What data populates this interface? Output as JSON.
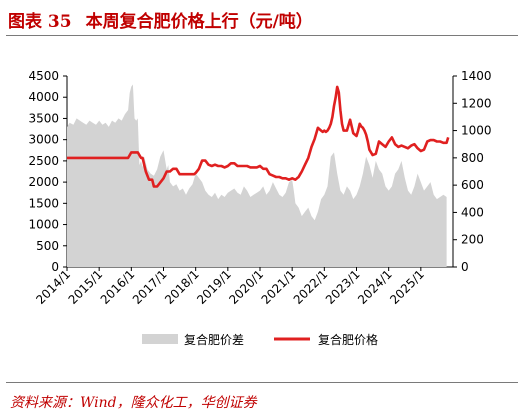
{
  "figure": {
    "label": "图表 35",
    "title": "本周复合肥价格上行（元/吨）",
    "source": "资料来源：Wind，隆众化工，华创证券"
  },
  "colors": {
    "title": "#c00000",
    "area": "#d3d3d3",
    "line": "#e02020",
    "axis": "#000000",
    "rule": "#7a7a7a"
  },
  "chart_data": {
    "type": "area",
    "x_ticks": [
      "2014/1",
      "2015/1",
      "2016/1",
      "2017/1",
      "2018/1",
      "2019/1",
      "2020/1",
      "2021/1",
      "2022/1",
      "2023/1",
      "2024/1",
      "2025/1"
    ],
    "x_range": [
      2014.0,
      2026.0
    ],
    "y_left": {
      "range": [
        0,
        4500
      ],
      "ticks": [
        0,
        500,
        1000,
        1500,
        2000,
        2500,
        3000,
        3500,
        4000,
        4500
      ]
    },
    "y_right": {
      "range": [
        0,
        1400
      ],
      "ticks": [
        0,
        200,
        400,
        600,
        800,
        1000,
        1200,
        1400
      ]
    },
    "legend_position": "bottom",
    "series": [
      {
        "name": "复合肥价差",
        "axis": "left",
        "style": "area",
        "x": [
          2014.0,
          2014.08,
          2014.2,
          2014.3,
          2014.4,
          2014.5,
          2014.6,
          2014.7,
          2014.8,
          2014.9,
          2015.0,
          2015.1,
          2015.2,
          2015.3,
          2015.4,
          2015.5,
          2015.6,
          2015.7,
          2015.8,
          2015.9,
          2015.95,
          2016.0,
          2016.05,
          2016.1,
          2016.15,
          2016.2,
          2016.25,
          2016.3,
          2016.35,
          2016.4,
          2016.5,
          2016.6,
          2016.7,
          2016.8,
          2016.9,
          2017.0,
          2017.1,
          2017.15,
          2017.2,
          2017.3,
          2017.4,
          2017.5,
          2017.6,
          2017.7,
          2017.8,
          2017.9,
          2018.0,
          2018.1,
          2018.2,
          2018.3,
          2018.4,
          2018.5,
          2018.6,
          2018.7,
          2018.8,
          2018.9,
          2019.0,
          2019.1,
          2019.2,
          2019.3,
          2019.4,
          2019.5,
          2019.6,
          2019.7,
          2019.8,
          2019.9,
          2020.0,
          2020.1,
          2020.2,
          2020.3,
          2020.4,
          2020.5,
          2020.6,
          2020.7,
          2020.8,
          2020.9,
          2021.0,
          2021.05,
          2021.1,
          2021.2,
          2021.3,
          2021.4,
          2021.5,
          2021.6,
          2021.7,
          2021.8,
          2021.9,
          2022.0,
          2022.1,
          2022.2,
          2022.3,
          2022.4,
          2022.5,
          2022.6,
          2022.7,
          2022.8,
          2022.9,
          2023.0,
          2023.1,
          2023.2,
          2023.3,
          2023.4,
          2023.5,
          2023.6,
          2023.7,
          2023.8,
          2023.9,
          2024.0,
          2024.1,
          2024.2,
          2024.3,
          2024.4,
          2024.5,
          2024.6,
          2024.7,
          2024.8,
          2024.9,
          2025.0,
          2025.1,
          2025.2,
          2025.3,
          2025.4,
          2025.5,
          2025.6,
          2025.7,
          2025.8
        ],
        "values": [
          3300,
          3400,
          3350,
          3500,
          3450,
          3400,
          3350,
          3450,
          3400,
          3350,
          3450,
          3350,
          3400,
          3300,
          3450,
          3400,
          3500,
          3450,
          3600,
          3700,
          4100,
          4250,
          4300,
          3500,
          3450,
          3500,
          2400,
          2500,
          2350,
          2600,
          2300,
          2200,
          2150,
          2300,
          2600,
          2750,
          2300,
          2400,
          2000,
          1900,
          1950,
          1800,
          1850,
          1700,
          1850,
          1950,
          2200,
          2100,
          2000,
          1800,
          1700,
          1650,
          1750,
          1600,
          1700,
          1650,
          1750,
          1800,
          1850,
          1750,
          1700,
          1900,
          1800,
          1650,
          1700,
          1750,
          1800,
          1900,
          1700,
          1800,
          2000,
          1850,
          1700,
          1650,
          1750,
          2000,
          2050,
          1800,
          1500,
          1400,
          1200,
          1300,
          1400,
          1200,
          1100,
          1300,
          1600,
          1700,
          1900,
          2600,
          2700,
          2200,
          1800,
          1700,
          1900,
          1800,
          1600,
          1700,
          1900,
          2200,
          2600,
          2400,
          2100,
          2500,
          2300,
          2200,
          1900,
          1800,
          1900,
          2200,
          2300,
          2500,
          2100,
          1800,
          1700,
          1900,
          2200,
          2000,
          1800,
          1900,
          2000,
          1700,
          1600,
          1650,
          1700,
          1650
        ]
      },
      {
        "name": "复合肥价格",
        "axis": "right",
        "style": "line",
        "x": [
          2014.0,
          2015.0,
          2015.9,
          2016.0,
          2016.05,
          2016.2,
          2016.3,
          2016.35,
          2016.45,
          2016.55,
          2016.65,
          2016.7,
          2016.8,
          2016.9,
          2017.0,
          2017.1,
          2017.2,
          2017.3,
          2017.4,
          2017.5,
          2017.6,
          2017.7,
          2017.8,
          2017.9,
          2017.95,
          2018.0,
          2018.1,
          2018.2,
          2018.3,
          2018.4,
          2018.5,
          2018.6,
          2018.7,
          2018.8,
          2018.9,
          2019.0,
          2019.1,
          2019.2,
          2019.3,
          2019.4,
          2019.5,
          2019.6,
          2019.7,
          2019.8,
          2019.9,
          2020.0,
          2020.1,
          2020.2,
          2020.3,
          2020.4,
          2020.5,
          2020.6,
          2020.7,
          2020.8,
          2020.9,
          2021.0,
          2021.1,
          2021.15,
          2021.2,
          2021.25,
          2021.3,
          2021.4,
          2021.5,
          2021.6,
          2021.7,
          2021.8,
          2021.9,
          2021.95,
          2022.0,
          2022.05,
          2022.1,
          2022.15,
          2022.2,
          2022.25,
          2022.3,
          2022.35,
          2022.4,
          2022.45,
          2022.5,
          2022.55,
          2022.6,
          2022.7,
          2022.8,
          2022.9,
          2023.0,
          2023.05,
          2023.1,
          2023.15,
          2023.2,
          2023.25,
          2023.3,
          2023.35,
          2023.4,
          2023.5,
          2023.6,
          2023.7,
          2023.8,
          2023.9,
          2024.0,
          2024.1,
          2024.2,
          2024.3,
          2024.4,
          2024.5,
          2024.6,
          2024.7,
          2024.8,
          2024.9,
          2025.0,
          2025.1,
          2025.2,
          2025.3,
          2025.4,
          2025.5,
          2025.6,
          2025.7,
          2025.8,
          2025.85
        ],
        "values": [
          800,
          800,
          800,
          840,
          840,
          840,
          800,
          800,
          700,
          640,
          640,
          590,
          590,
          620,
          650,
          700,
          700,
          720,
          720,
          680,
          680,
          680,
          680,
          680,
          680,
          690,
          720,
          780,
          780,
          750,
          740,
          750,
          740,
          740,
          730,
          740,
          760,
          760,
          740,
          740,
          740,
          740,
          730,
          730,
          730,
          740,
          720,
          720,
          680,
          670,
          660,
          660,
          650,
          650,
          640,
          650,
          640,
          650,
          660,
          680,
          700,
          750,
          800,
          880,
          940,
          1020,
          1000,
          990,
          1000,
          990,
          1000,
          1020,
          1050,
          1100,
          1180,
          1240,
          1320,
          1280,
          1150,
          1050,
          1000,
          1000,
          1080,
          980,
          960,
          1000,
          1050,
          1030,
          1020,
          1000,
          970,
          920,
          860,
          820,
          830,
          920,
          900,
          880,
          920,
          950,
          900,
          880,
          890,
          880,
          870,
          890,
          900,
          870,
          850,
          860,
          920,
          930,
          930,
          920,
          920,
          910,
          910,
          950
        ]
      }
    ]
  }
}
